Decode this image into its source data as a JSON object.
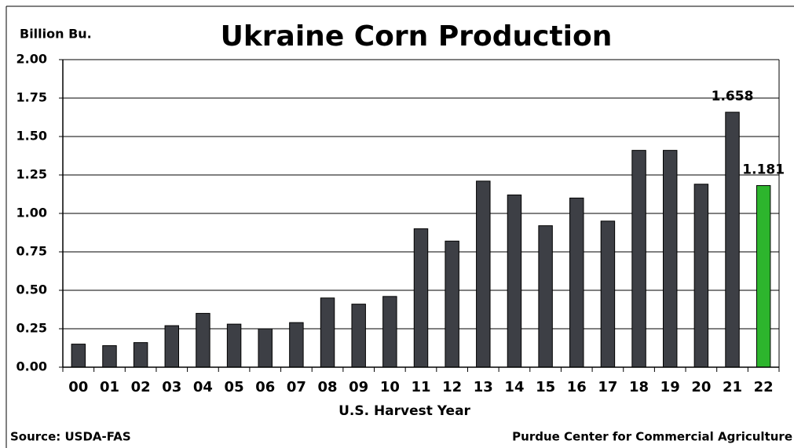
{
  "chart_data": {
    "type": "bar",
    "title": "Ukraine Corn Production",
    "y_axis_label": "Billion Bu.",
    "x_axis_label": "U.S. Harvest Year",
    "source": "Source: USDA-FAS",
    "credit": "Purdue Center for Commercial Agriculture",
    "categories": [
      "00",
      "01",
      "02",
      "03",
      "04",
      "05",
      "06",
      "07",
      "08",
      "09",
      "10",
      "11",
      "12",
      "13",
      "14",
      "15",
      "16",
      "17",
      "18",
      "19",
      "20",
      "21",
      "22"
    ],
    "values": [
      0.15,
      0.14,
      0.16,
      0.27,
      0.35,
      0.28,
      0.25,
      0.29,
      0.45,
      0.41,
      0.46,
      0.9,
      0.82,
      1.21,
      1.12,
      0.92,
      1.1,
      0.95,
      1.41,
      1.41,
      1.19,
      1.658,
      1.181
    ],
    "value_labels": [
      null,
      null,
      null,
      null,
      null,
      null,
      null,
      null,
      null,
      null,
      null,
      null,
      null,
      null,
      null,
      null,
      null,
      null,
      null,
      null,
      null,
      "1.658",
      "1.181"
    ],
    "colors": [
      "#3d3f45",
      "#3d3f45",
      "#3d3f45",
      "#3d3f45",
      "#3d3f45",
      "#3d3f45",
      "#3d3f45",
      "#3d3f45",
      "#3d3f45",
      "#3d3f45",
      "#3d3f45",
      "#3d3f45",
      "#3d3f45",
      "#3d3f45",
      "#3d3f45",
      "#3d3f45",
      "#3d3f45",
      "#3d3f45",
      "#3d3f45",
      "#3d3f45",
      "#3d3f45",
      "#3d3f45",
      "#2db52d"
    ],
    "ylim": [
      0,
      2
    ],
    "yticks": [
      {
        "value": 0,
        "label": "0.00"
      },
      {
        "value": 0.25,
        "label": "0.25"
      },
      {
        "value": 0.5,
        "label": "0.50"
      },
      {
        "value": 0.75,
        "label": "0.75"
      },
      {
        "value": 1,
        "label": "1.00"
      },
      {
        "value": 1.25,
        "label": "1.25"
      },
      {
        "value": 1.5,
        "label": "1.50"
      },
      {
        "value": 1.75,
        "label": "1.75"
      },
      {
        "value": 2,
        "label": "2.00"
      }
    ],
    "grid": true
  }
}
